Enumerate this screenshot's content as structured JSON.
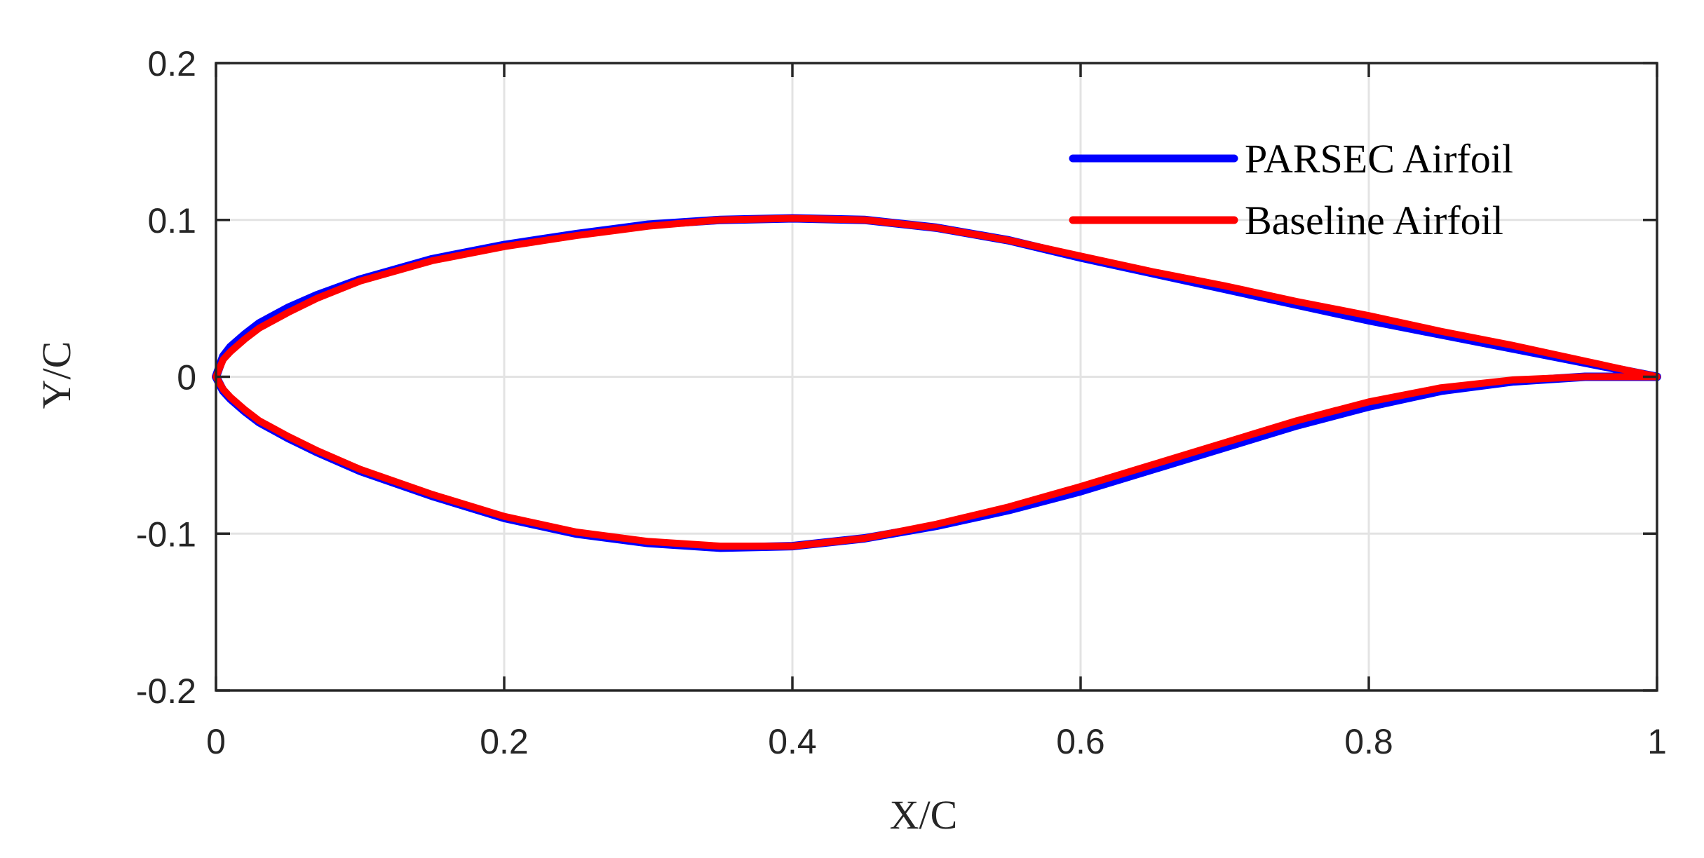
{
  "chart_data": {
    "type": "line",
    "xlabel": "X/C",
    "ylabel": "Y/C",
    "xlim": [
      0,
      1
    ],
    "ylim": [
      -0.2,
      0.2
    ],
    "xticks": [
      0,
      0.2,
      0.4,
      0.6,
      0.8,
      1
    ],
    "xtick_labels": [
      "0",
      "0.2",
      "0.4",
      "0.6",
      "0.8",
      "1"
    ],
    "yticks": [
      -0.2,
      -0.1,
      0,
      0.1,
      0.2
    ],
    "ytick_labels": [
      "-0.2",
      "-0.1",
      "0",
      "0.1",
      "0.2"
    ],
    "grid": true,
    "legend_position": "top-right",
    "series": [
      {
        "name": "PARSEC Airfoil",
        "color": "#0000ff",
        "x": [
          1.0,
          0.95,
          0.9,
          0.85,
          0.8,
          0.75,
          0.7,
          0.65,
          0.6,
          0.55,
          0.5,
          0.45,
          0.4,
          0.35,
          0.3,
          0.25,
          0.2,
          0.15,
          0.1,
          0.07,
          0.05,
          0.03,
          0.02,
          0.01,
          0.005,
          0.0,
          0.005,
          0.01,
          0.02,
          0.03,
          0.05,
          0.07,
          0.1,
          0.15,
          0.2,
          0.25,
          0.3,
          0.35,
          0.4,
          0.45,
          0.5,
          0.55,
          0.6,
          0.65,
          0.7,
          0.75,
          0.8,
          0.85,
          0.9,
          0.95,
          1.0
        ],
        "y": [
          0.0,
          0.009,
          0.018,
          0.027,
          0.036,
          0.046,
          0.056,
          0.066,
          0.076,
          0.087,
          0.095,
          0.1,
          0.101,
          0.1,
          0.097,
          0.091,
          0.084,
          0.075,
          0.062,
          0.052,
          0.044,
          0.034,
          0.027,
          0.019,
          0.013,
          0.0,
          -0.009,
          -0.014,
          -0.022,
          -0.029,
          -0.039,
          -0.048,
          -0.06,
          -0.076,
          -0.09,
          -0.1,
          -0.106,
          -0.109,
          -0.108,
          -0.103,
          -0.095,
          -0.085,
          -0.073,
          -0.059,
          -0.045,
          -0.031,
          -0.019,
          -0.009,
          -0.003,
          0.0,
          0.0
        ]
      },
      {
        "name": "Baseline Airfoil",
        "color": "#ff0000",
        "x": [
          1.0,
          0.95,
          0.9,
          0.85,
          0.8,
          0.75,
          0.7,
          0.65,
          0.6,
          0.55,
          0.5,
          0.45,
          0.4,
          0.35,
          0.3,
          0.25,
          0.2,
          0.15,
          0.1,
          0.07,
          0.05,
          0.03,
          0.02,
          0.01,
          0.005,
          0.0,
          0.005,
          0.01,
          0.02,
          0.03,
          0.05,
          0.07,
          0.1,
          0.15,
          0.2,
          0.25,
          0.3,
          0.35,
          0.4,
          0.45,
          0.5,
          0.55,
          0.6,
          0.65,
          0.7,
          0.75,
          0.8,
          0.85,
          0.9,
          0.95,
          1.0
        ],
        "y": [
          0.0,
          0.01,
          0.02,
          0.029,
          0.039,
          0.048,
          0.058,
          0.067,
          0.077,
          0.087,
          0.095,
          0.1,
          0.101,
          0.1,
          0.096,
          0.09,
          0.083,
          0.074,
          0.061,
          0.05,
          0.041,
          0.031,
          0.024,
          0.016,
          0.011,
          0.0,
          -0.008,
          -0.013,
          -0.021,
          -0.028,
          -0.038,
          -0.047,
          -0.059,
          -0.075,
          -0.089,
          -0.099,
          -0.105,
          -0.108,
          -0.108,
          -0.103,
          -0.094,
          -0.083,
          -0.07,
          -0.056,
          -0.042,
          -0.028,
          -0.016,
          -0.007,
          -0.002,
          0.0,
          0.0
        ]
      }
    ]
  }
}
